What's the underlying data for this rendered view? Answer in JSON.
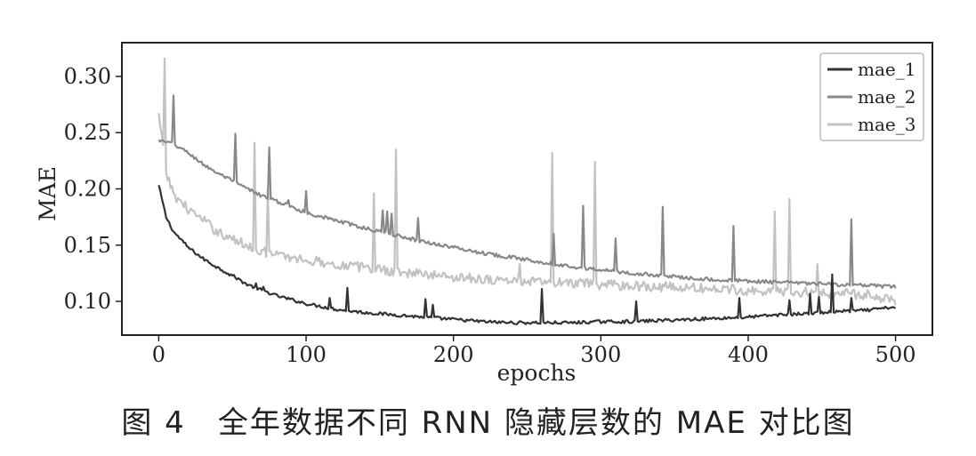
{
  "caption": "图 4　全年数据不同 RNN 隐藏层数的 MAE 对比图",
  "chart_data": {
    "type": "line",
    "xlabel": "epochs",
    "ylabel": "MAE",
    "xlim": [
      -25,
      525
    ],
    "ylim": [
      0.07,
      0.33
    ],
    "x_ticks": [
      0,
      100,
      200,
      300,
      400,
      500
    ],
    "y_ticks": [
      0.1,
      0.15,
      0.2,
      0.25,
      0.3
    ],
    "x_tick_labels": [
      "0",
      "100",
      "200",
      "300",
      "400",
      "500"
    ],
    "y_tick_labels": [
      "0.10",
      "0.15",
      "0.20",
      "0.25",
      "0.30"
    ],
    "grid": false,
    "legend_position": "top-right",
    "series": [
      {
        "name": "mae_1",
        "color": "#333333",
        "x": [
          0,
          5,
          10,
          20,
          30,
          40,
          50,
          60,
          70,
          80,
          100,
          120,
          140,
          160,
          180,
          200,
          220,
          240,
          260,
          280,
          300,
          320,
          340,
          360,
          380,
          400,
          420,
          440,
          460,
          480,
          500
        ],
        "values": [
          0.203,
          0.175,
          0.162,
          0.148,
          0.138,
          0.13,
          0.123,
          0.115,
          0.11,
          0.105,
          0.098,
          0.093,
          0.09,
          0.088,
          0.086,
          0.084,
          0.082,
          0.081,
          0.081,
          0.081,
          0.082,
          0.082,
          0.083,
          0.084,
          0.085,
          0.086,
          0.088,
          0.089,
          0.091,
          0.092,
          0.095
        ],
        "spikes": [
          [
            48,
            0.123
          ],
          [
            66,
            0.116
          ],
          [
            71,
            0.113
          ],
          [
            116,
            0.103
          ],
          [
            128,
            0.112
          ],
          [
            181,
            0.102
          ],
          [
            186,
            0.097
          ],
          [
            260,
            0.111
          ],
          [
            324,
            0.1
          ],
          [
            394,
            0.103
          ],
          [
            428,
            0.101
          ],
          [
            442,
            0.107
          ],
          [
            448,
            0.104
          ],
          [
            457,
            0.124
          ],
          [
            470,
            0.103
          ]
        ]
      },
      {
        "name": "mae_2",
        "color": "#888888",
        "x": [
          0,
          10,
          20,
          30,
          40,
          50,
          60,
          70,
          80,
          90,
          100,
          120,
          140,
          160,
          180,
          200,
          220,
          240,
          260,
          280,
          300,
          320,
          340,
          360,
          380,
          400,
          420,
          440,
          460,
          480,
          500
        ],
        "values": [
          0.243,
          0.24,
          0.232,
          0.222,
          0.214,
          0.207,
          0.2,
          0.194,
          0.189,
          0.184,
          0.179,
          0.172,
          0.165,
          0.159,
          0.153,
          0.148,
          0.143,
          0.139,
          0.135,
          0.131,
          0.128,
          0.125,
          0.123,
          0.121,
          0.119,
          0.118,
          0.117,
          0.116,
          0.115,
          0.114,
          0.113
        ],
        "spikes": [
          [
            10,
            0.283
          ],
          [
            52,
            0.249
          ],
          [
            75,
            0.237
          ],
          [
            88,
            0.19
          ],
          [
            100,
            0.198
          ],
          [
            152,
            0.181
          ],
          [
            155,
            0.18
          ],
          [
            158,
            0.178
          ],
          [
            176,
            0.174
          ],
          [
            268,
            0.16
          ],
          [
            288,
            0.185
          ],
          [
            310,
            0.156
          ],
          [
            342,
            0.184
          ],
          [
            390,
            0.167
          ],
          [
            470,
            0.173
          ]
        ]
      },
      {
        "name": "mae_3",
        "color": "#c2c2c2",
        "x": [
          0,
          5,
          10,
          20,
          30,
          40,
          50,
          60,
          70,
          80,
          100,
          120,
          140,
          160,
          180,
          200,
          220,
          240,
          260,
          280,
          300,
          320,
          340,
          360,
          380,
          400,
          420,
          440,
          460,
          480,
          500
        ],
        "values": [
          0.265,
          0.215,
          0.195,
          0.182,
          0.172,
          0.162,
          0.155,
          0.15,
          0.145,
          0.141,
          0.137,
          0.133,
          0.13,
          0.127,
          0.124,
          0.122,
          0.12,
          0.118,
          0.117,
          0.116,
          0.115,
          0.114,
          0.113,
          0.112,
          0.111,
          0.11,
          0.109,
          0.108,
          0.107,
          0.106,
          0.101
        ],
        "spikes": [
          [
            4,
            0.316
          ],
          [
            65,
            0.241
          ],
          [
            74,
            0.2
          ],
          [
            146,
            0.196
          ],
          [
            161,
            0.235
          ],
          [
            245,
            0.133
          ],
          [
            267,
            0.232
          ],
          [
            296,
            0.224
          ],
          [
            418,
            0.18
          ],
          [
            428,
            0.191
          ],
          [
            447,
            0.133
          ]
        ]
      }
    ]
  }
}
